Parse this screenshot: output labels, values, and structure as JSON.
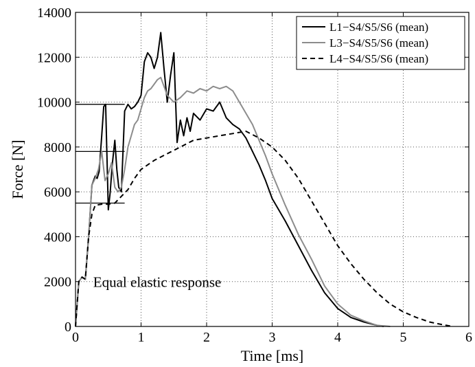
{
  "chart_data": {
    "type": "line",
    "title": "",
    "xlabel": "Time [ms]",
    "ylabel": "Force [N]",
    "xlim": [
      0,
      6
    ],
    "ylim": [
      0,
      14000
    ],
    "xticks": [
      0,
      1,
      2,
      3,
      4,
      5,
      6
    ],
    "yticks": [
      0,
      2000,
      4000,
      6000,
      8000,
      10000,
      12000,
      14000
    ],
    "grid": true,
    "legend_position": "top-right",
    "series": [
      {
        "name": "L1−S4/S5/S6 (mean)",
        "color": "#000000",
        "dash": "solid",
        "x": [
          0,
          0.05,
          0.1,
          0.15,
          0.2,
          0.25,
          0.3,
          0.33,
          0.36,
          0.4,
          0.43,
          0.46,
          0.5,
          0.53,
          0.56,
          0.6,
          0.63,
          0.66,
          0.7,
          0.75,
          0.8,
          0.85,
          0.9,
          0.95,
          1.0,
          1.05,
          1.1,
          1.15,
          1.2,
          1.25,
          1.3,
          1.35,
          1.4,
          1.45,
          1.5,
          1.55,
          1.6,
          1.65,
          1.7,
          1.75,
          1.8,
          1.9,
          2.0,
          2.1,
          2.2,
          2.3,
          2.4,
          2.5,
          2.6,
          2.7,
          2.8,
          2.9,
          3.0,
          3.2,
          3.4,
          3.6,
          3.8,
          4.0,
          4.2,
          4.4,
          4.6,
          4.7
        ],
        "y": [
          0,
          2000,
          2200,
          2100,
          4000,
          6300,
          6700,
          6600,
          6900,
          8500,
          9800,
          9900,
          5200,
          6000,
          7200,
          8300,
          7000,
          6200,
          6000,
          9600,
          9900,
          9700,
          9800,
          10000,
          10300,
          11800,
          12200,
          12000,
          11500,
          12000,
          13100,
          11500,
          10000,
          11200,
          12200,
          8200,
          9200,
          8500,
          9300,
          8700,
          9500,
          9200,
          9700,
          9600,
          10000,
          9300,
          9000,
          8800,
          8400,
          7800,
          7200,
          6500,
          5700,
          4700,
          3600,
          2500,
          1500,
          800,
          400,
          200,
          50,
          0
        ]
      },
      {
        "name": "L3−S4/S5/S6 (mean)",
        "color": "#8c8c8c",
        "dash": "solid",
        "x": [
          0,
          0.05,
          0.1,
          0.15,
          0.2,
          0.25,
          0.3,
          0.35,
          0.4,
          0.45,
          0.5,
          0.55,
          0.6,
          0.65,
          0.7,
          0.75,
          0.8,
          0.85,
          0.9,
          0.95,
          1.0,
          1.05,
          1.1,
          1.15,
          1.2,
          1.25,
          1.3,
          1.4,
          1.5,
          1.6,
          1.7,
          1.8,
          1.9,
          2.0,
          2.1,
          2.2,
          2.3,
          2.4,
          2.5,
          2.6,
          2.7,
          2.8,
          2.9,
          3.0,
          3.2,
          3.4,
          3.6,
          3.8,
          4.0,
          4.2,
          4.4,
          4.6,
          4.8
        ],
        "y": [
          0,
          2000,
          2200,
          2100,
          4000,
          6300,
          6600,
          7000,
          7800,
          6500,
          6800,
          7300,
          6200,
          6000,
          6200,
          7000,
          8000,
          8500,
          9000,
          9200,
          9700,
          10200,
          10500,
          10600,
          10800,
          11000,
          11100,
          10300,
          10000,
          10200,
          10500,
          10400,
          10600,
          10500,
          10700,
          10600,
          10700,
          10500,
          10000,
          9500,
          9000,
          8300,
          7600,
          6800,
          5400,
          4100,
          3000,
          1800,
          1000,
          500,
          250,
          50,
          0
        ]
      },
      {
        "name": "L4−S4/S5/S6 (mean)",
        "color": "#000000",
        "dash": "dashed",
        "x": [
          0,
          0.05,
          0.1,
          0.15,
          0.2,
          0.25,
          0.3,
          0.4,
          0.5,
          0.6,
          0.7,
          0.8,
          0.9,
          1.0,
          1.2,
          1.4,
          1.6,
          1.8,
          2.0,
          2.2,
          2.4,
          2.6,
          2.8,
          3.0,
          3.2,
          3.4,
          3.6,
          3.8,
          4.0,
          4.2,
          4.4,
          4.6,
          4.8,
          5.0,
          5.2,
          5.4,
          5.6,
          5.75
        ],
        "y": [
          0,
          2000,
          2200,
          2100,
          4000,
          5000,
          5400,
          5450,
          5450,
          5500,
          5800,
          6100,
          6600,
          7000,
          7400,
          7700,
          8000,
          8300,
          8400,
          8500,
          8600,
          8700,
          8400,
          8000,
          7400,
          6600,
          5600,
          4600,
          3600,
          2800,
          2100,
          1500,
          1000,
          650,
          400,
          200,
          80,
          0
        ]
      }
    ],
    "reference_lines": [
      {
        "y": 9900,
        "x_start": 0,
        "x_end": 0.75
      },
      {
        "y": 7800,
        "x_start": 0,
        "x_end": 0.75
      },
      {
        "y": 5500,
        "x_start": 0,
        "x_end": 0.75
      }
    ],
    "annotations": [
      {
        "text": "Equal elastic response",
        "x": 0.27,
        "y": 2000
      }
    ]
  }
}
